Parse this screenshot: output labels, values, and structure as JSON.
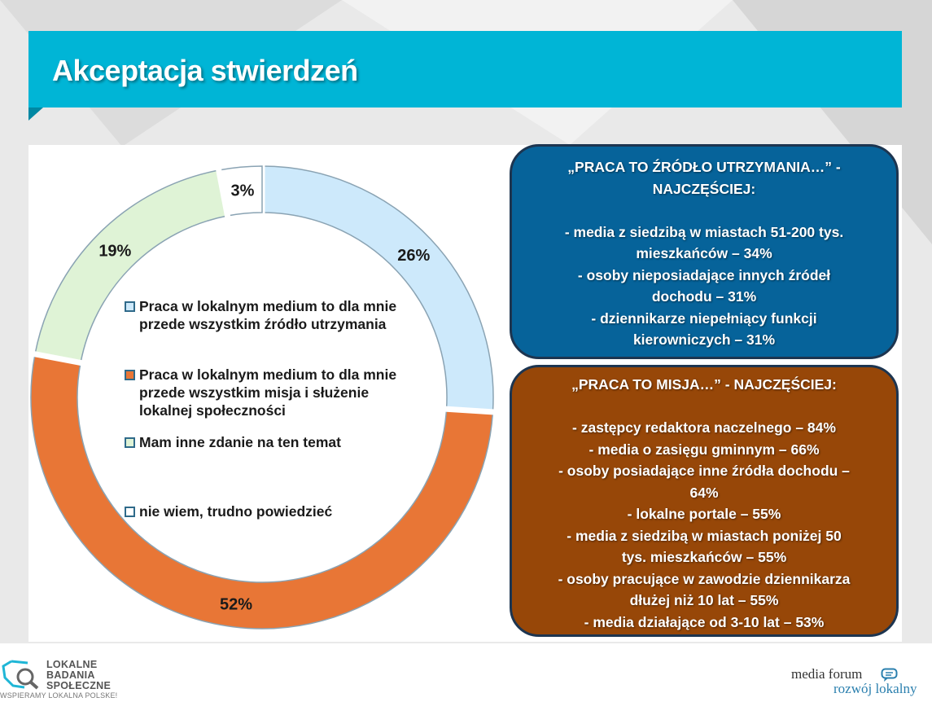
{
  "slide": {
    "title": "Akceptacja stwierdzeń"
  },
  "colors": {
    "banner": "#00b5d6",
    "box1": "#06639a",
    "box2": "#974708"
  },
  "chart_data": {
    "type": "pie",
    "variant": "donut",
    "categories": [
      "Praca w lokalnym medium to dla mnie przede wszystkim źródło utrzymania",
      "Praca w lokalnym medium to dla mnie przede wszystkim misja i służenie lokalnej społeczności",
      "Mam inne zdanie na ten temat",
      "nie wiem, trudno powiedzieć"
    ],
    "values": [
      26,
      52,
      19,
      3
    ],
    "data_labels": [
      "26%",
      "52%",
      "19%",
      "3%"
    ],
    "colors": [
      "#cde9fb",
      "#e87636",
      "#dff3d6",
      "#ffffff"
    ],
    "legend_placement": "center"
  },
  "box1": {
    "lines": [
      "„PRACA TO ŹRÓDŁO UTRZYMANIA…” -",
      "NAJCZĘŚCIEJ:",
      "",
      "- media z siedzibą w miastach 51-200 tys.",
      "mieszkańców – 34%",
      "- osoby nieposiadające innych źródeł",
      "dochodu – 31%",
      "- dziennikarze niepełniący funkcji",
      "kierowniczych – 31%"
    ]
  },
  "box2": {
    "lines": [
      "„PRACA TO MISJA…” - NAJCZĘŚCIEJ:",
      "",
      "- zastępcy redaktora naczelnego – 84%",
      "- media o zasięgu gminnym – 66%",
      "- osoby posiadające inne źródła dochodu –",
      "64%",
      "- lokalne portale – 55%",
      "- media z siedzibą w miastach poniżej 50",
      "tys. mieszkańców – 55%",
      "- osoby pracujące w zawodzie dziennikarza",
      "dłużej niż 10 lat – 55%",
      "- media działające od 3-10 lat – 53%"
    ]
  },
  "footer": {
    "lbs_logo": [
      "LOKALNE",
      "BADANIA",
      "SPOŁECZNE"
    ],
    "lbs_tagline": "WSPIERAMY LOKALNA POLSKE!",
    "mf_line1": "media forum",
    "mf_line2": "rozwój lokalny"
  }
}
